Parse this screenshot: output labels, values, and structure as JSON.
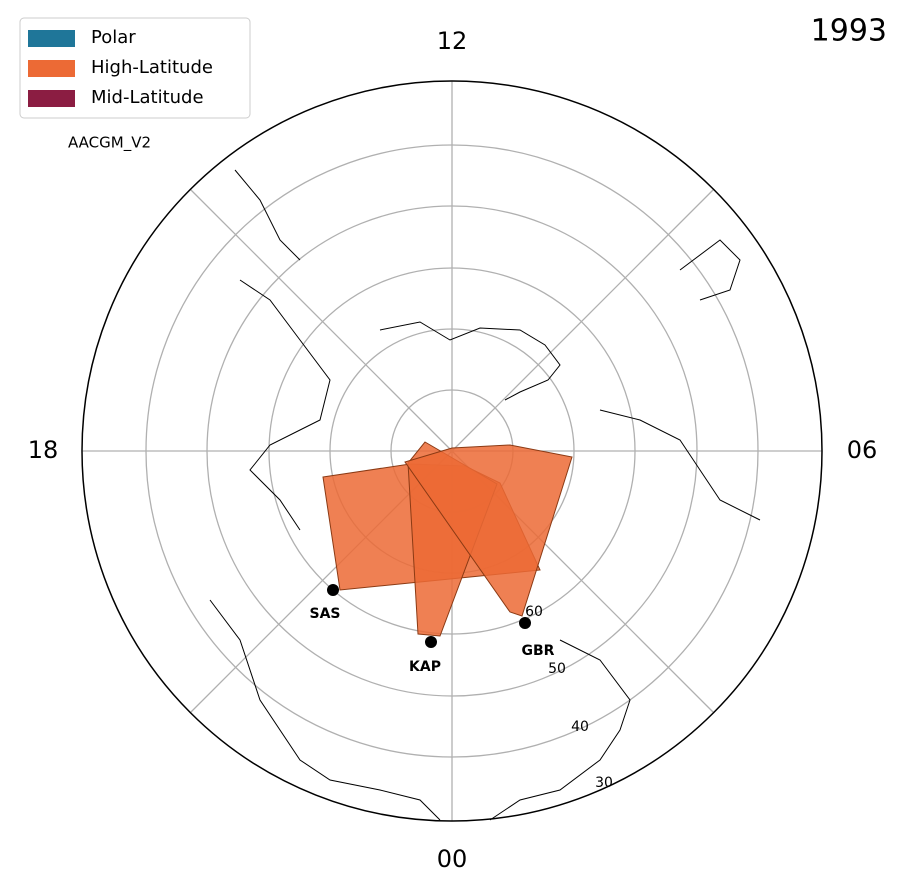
{
  "legend": [
    {
      "label": "Polar",
      "color": "#1f7699"
    },
    {
      "label": "High-Latitude",
      "color": "#ec6a35"
    },
    {
      "label": "Mid-Latitude",
      "color": "#8b1d42"
    }
  ],
  "coordinate_system": "AACGM_V2",
  "year": "1993",
  "hour_labels": {
    "top": "12",
    "right": "06",
    "bottom": "00",
    "left": "18"
  },
  "latitude_labels": [
    "30",
    "40",
    "50",
    "60"
  ],
  "stations": [
    {
      "label": "SAS"
    },
    {
      "label": "KAP"
    },
    {
      "label": "GBR"
    }
  ]
}
